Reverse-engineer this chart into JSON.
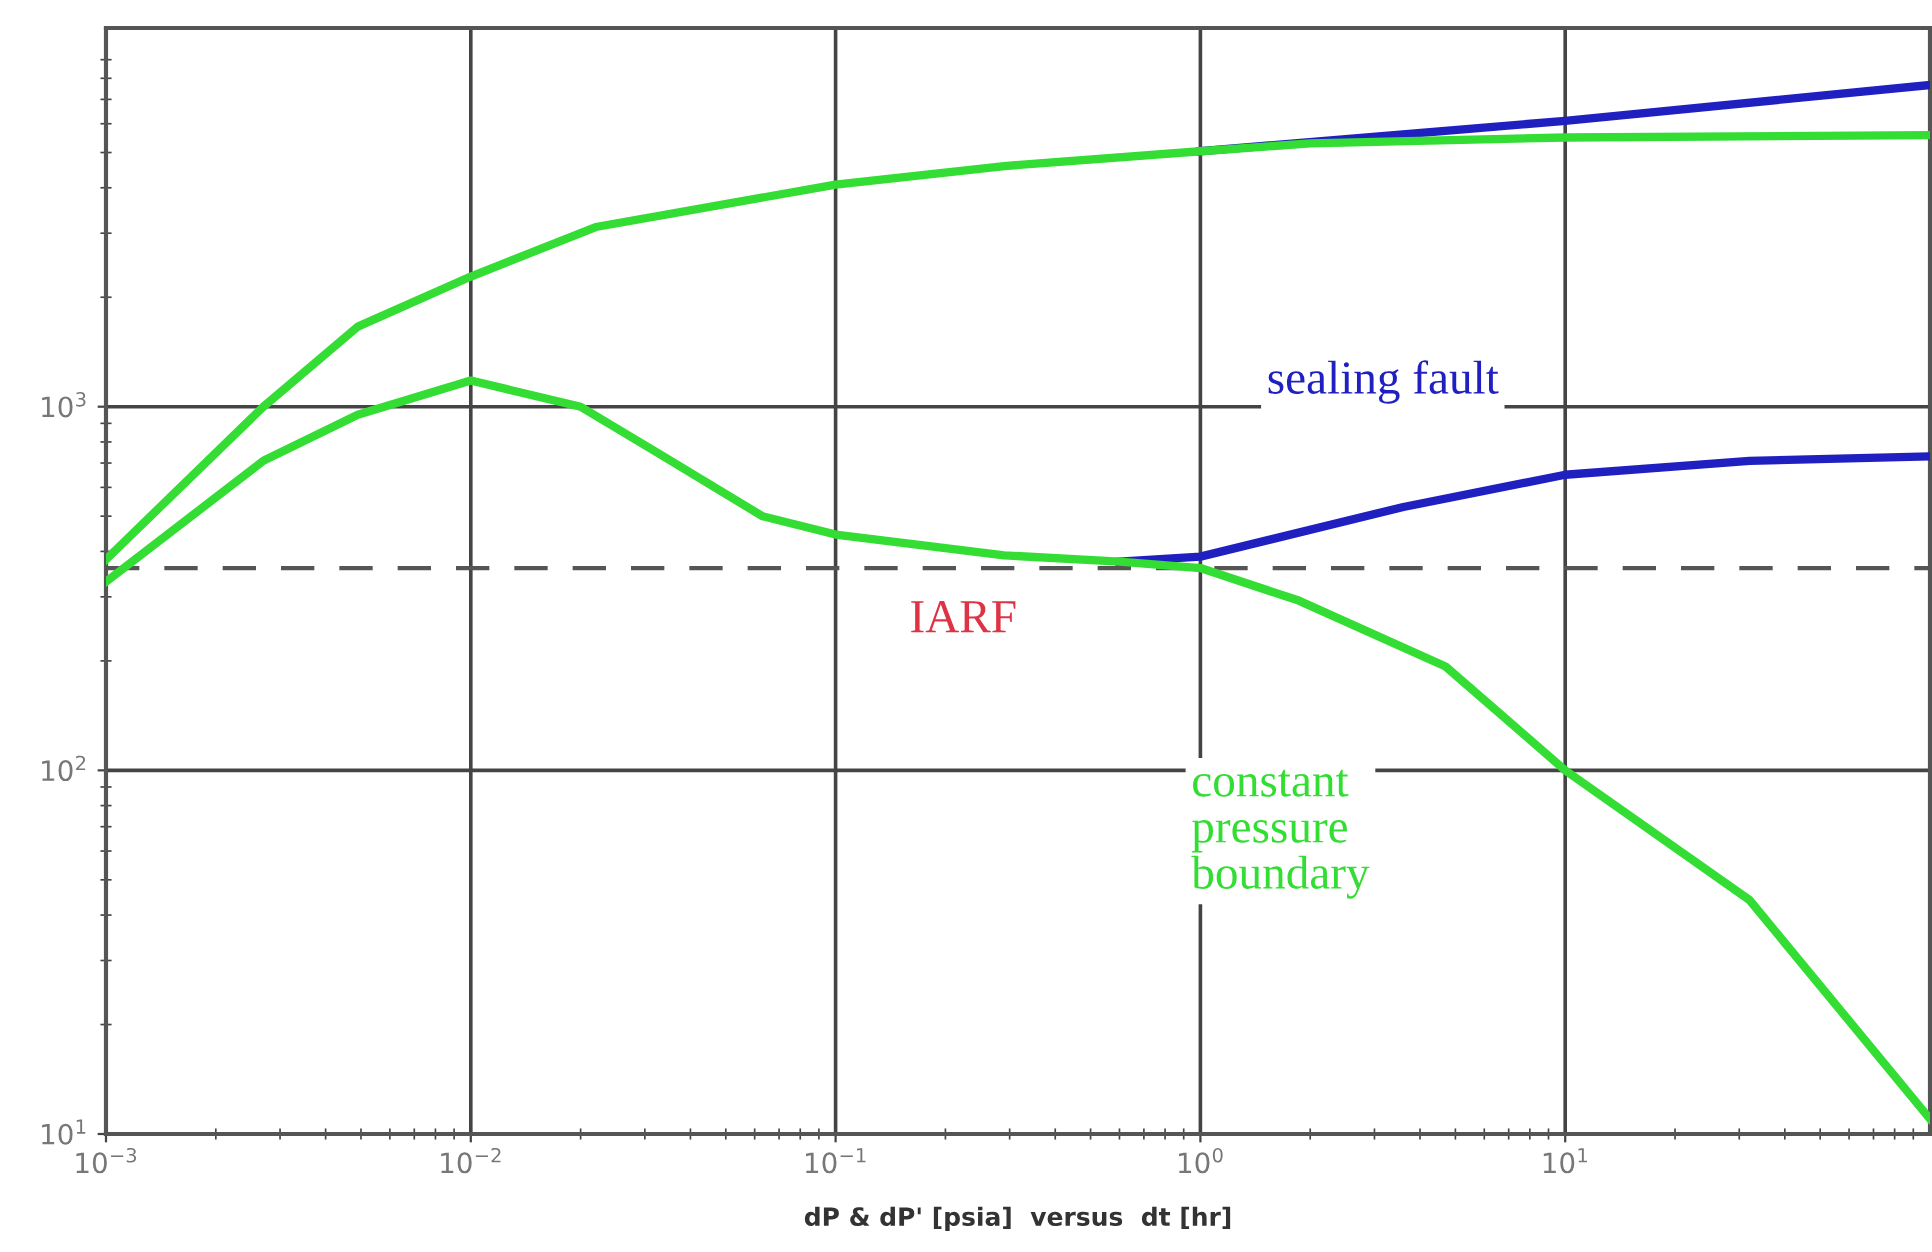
{
  "chart_data": {
    "type": "line",
    "xlabel": "dP & dP' [psia]  versus  dt [hr]",
    "log": "xy",
    "grid": true,
    "legend": false,
    "marker": "none",
    "line_style": "solid",
    "xlim": [
      0.001,
      100
    ],
    "ylim": [
      10,
      11000
    ],
    "xticks": [
      {
        "value": 0.001,
        "label": "10$^{−3}$"
      },
      {
        "value": 0.01,
        "label": "10$^{−2}$"
      },
      {
        "value": 0.1,
        "label": "10$^{−1}$"
      },
      {
        "value": 1,
        "label": "10$^{0}$"
      },
      {
        "value": 10,
        "label": "10$^{1}$"
      }
    ],
    "yticks": [
      {
        "value": 10,
        "label": "10$^{1}$"
      },
      {
        "value": 100,
        "label": "10$^{2}$"
      },
      {
        "value": 1000,
        "label": "10$^{3}$"
      }
    ],
    "ref_lines": [
      {
        "axis": "y",
        "value": 360,
        "label": "IARF",
        "color": "#555555",
        "line_style": "dashed"
      }
    ],
    "series": [
      {
        "color": "#2020c0",
        "x": [
          1,
          10,
          100
        ],
        "values": [
          5040,
          6110,
          7670
        ]
      },
      {
        "name": "sealing fault",
        "color": "#2020c0",
        "x": [
          0.6,
          1,
          3.6,
          10,
          32,
          100
        ],
        "values": [
          375,
          387,
          530,
          650,
          710,
          730
        ]
      },
      {
        "color": "#33dd33",
        "x": [
          0.001,
          0.0027,
          0.0049,
          0.01,
          0.022,
          0.1,
          0.29,
          1,
          2,
          10,
          100
        ],
        "values": [
          380,
          1000,
          1660,
          2280,
          3120,
          4080,
          4590,
          5040,
          5300,
          5500,
          5580
        ]
      },
      {
        "name": "constant\npressure\nboundary",
        "color": "#33dd33",
        "x": [
          0.001,
          0.0027,
          0.0049,
          0.01,
          0.02,
          0.033,
          0.063,
          0.1,
          0.29,
          0.6,
          1,
          1.86,
          4.7,
          10,
          32,
          100
        ],
        "values": [
          330,
          710,
          950,
          1180,
          1000,
          740,
          500,
          445,
          390,
          375,
          360,
          293,
          193,
          100,
          44,
          11
        ]
      }
    ]
  }
}
